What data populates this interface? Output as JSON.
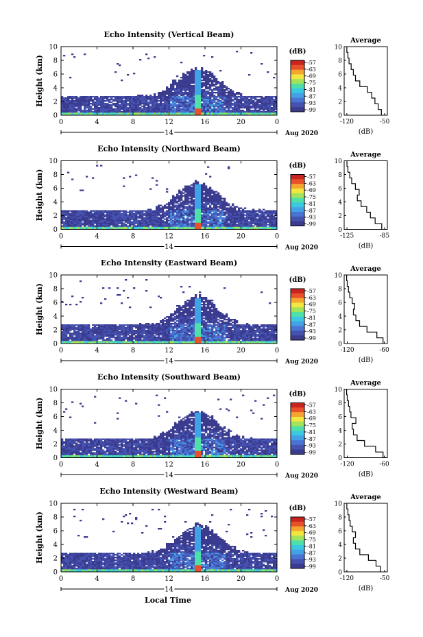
{
  "figure": {
    "date_label": "Aug 2020",
    "x_axis_title": "Local Time",
    "day_label": "14",
    "height_label": "Height (km)",
    "colorbar_unit": "(dB)",
    "avg_title": "Average",
    "avg_xlabel": "(dB)"
  },
  "colors": {
    "colormap": [
      "#3b3b8f",
      "#4552b0",
      "#4a74d4",
      "#43a1e6",
      "#3cc8e0",
      "#4ee0a8",
      "#a3e35a",
      "#f2e640",
      "#f5a52f",
      "#e8512a",
      "#c9241f"
    ],
    "background_echo": "#3b3b8f"
  },
  "chart_data": [
    {
      "type": "heatmap",
      "title": "Echo Intensity (Vertical Beam)",
      "ylabel": "Height (km)",
      "xlabel": "Local Time",
      "x_ticks": [
        "0",
        "4",
        "8",
        "12",
        "16",
        "20",
        "0"
      ],
      "y_ticks": [
        "0",
        "2",
        "4",
        "6",
        "8",
        "10"
      ],
      "xlim": [
        0,
        24
      ],
      "ylim": [
        0,
        10
      ],
      "colorbar": {
        "unit": "(dB)",
        "ticks": [
          "-57",
          "-63",
          "-69",
          "-75",
          "-81",
          "-87",
          "-93",
          "-99"
        ]
      },
      "average_profile": {
        "title": "Average",
        "xlabel": "(dB)",
        "xticks": [
          "-120",
          "-50"
        ],
        "xlim": [
          -125,
          -45
        ],
        "ylim": [
          0,
          10
        ],
        "values": [
          -56,
          -62,
          -68,
          -74,
          -82,
          -96,
          -104,
          -108,
          -112,
          -116,
          -118,
          -120
        ]
      }
    },
    {
      "type": "heatmap",
      "title": "Echo Intensity (Northward Beam)",
      "ylabel": "Height (km)",
      "xlabel": "Local Time",
      "x_ticks": [
        "0",
        "4",
        "8",
        "12",
        "16",
        "20",
        "0"
      ],
      "y_ticks": [
        "0",
        "2",
        "4",
        "6",
        "8",
        "10"
      ],
      "xlim": [
        0,
        24
      ],
      "ylim": [
        0,
        10
      ],
      "colorbar": {
        "unit": "(dB)",
        "ticks": [
          "-57",
          "-63",
          "-69",
          "-75",
          "-81",
          "-87",
          "-93",
          "-99"
        ]
      },
      "average_profile": {
        "title": "Average",
        "xlabel": "(dB)",
        "xticks": [
          "-125",
          "-85"
        ],
        "xlim": [
          -128,
          -82
        ],
        "ylim": [
          0,
          10
        ],
        "values": [
          -88,
          -95,
          -100,
          -104,
          -110,
          -114,
          -112,
          -116,
          -120,
          -122,
          -124,
          -125
        ]
      }
    },
    {
      "type": "heatmap",
      "title": "Echo Intensity (Eastward Beam)",
      "ylabel": "Height (km)",
      "xlabel": "Local Time",
      "x_ticks": [
        "0",
        "4",
        "8",
        "12",
        "16",
        "20",
        "0"
      ],
      "y_ticks": [
        "0",
        "2",
        "4",
        "6",
        "8",
        "10"
      ],
      "xlim": [
        0,
        24
      ],
      "ylim": [
        0,
        10
      ],
      "colorbar": {
        "unit": "(dB)",
        "ticks": [
          "-57",
          "-63",
          "-69",
          "-75",
          "-81",
          "-87",
          "-93",
          "-99"
        ]
      },
      "average_profile": {
        "title": "Average",
        "xlabel": "(dB)",
        "xticks": [
          "-120",
          "-60"
        ],
        "xlim": [
          -125,
          -55
        ],
        "ylim": [
          0,
          10
        ],
        "values": [
          -62,
          -72,
          -88,
          -100,
          -106,
          -110,
          -108,
          -112,
          -116,
          -118,
          -120,
          -121
        ]
      }
    },
    {
      "type": "heatmap",
      "title": "Echo Intensity (Southward Beam)",
      "ylabel": "Height (km)",
      "xlabel": "Local Time",
      "x_ticks": [
        "0",
        "4",
        "8",
        "12",
        "16",
        "20",
        "0"
      ],
      "y_ticks": [
        "0",
        "2",
        "4",
        "6",
        "8",
        "10"
      ],
      "xlim": [
        0,
        24
      ],
      "ylim": [
        0,
        10
      ],
      "colorbar": {
        "unit": "(dB)",
        "ticks": [
          "-57",
          "-63",
          "-69",
          "-75",
          "-81",
          "-87",
          "-93",
          "-99"
        ]
      },
      "average_profile": {
        "title": "Average",
        "xlabel": "(dB)",
        "xticks": [
          "-120",
          "-60"
        ],
        "xlim": [
          -125,
          -55
        ],
        "ylim": [
          0,
          10
        ],
        "values": [
          -62,
          -74,
          -92,
          -104,
          -110,
          -112,
          -106,
          -114,
          -116,
          -118,
          -120,
          -121
        ]
      }
    },
    {
      "type": "heatmap",
      "title": "Echo Intensity (Westward Beam)",
      "ylabel": "Height (km)",
      "xlabel": "Local Time",
      "x_ticks": [
        "0",
        "4",
        "8",
        "12",
        "16",
        "20",
        "0"
      ],
      "y_ticks": [
        "0",
        "2",
        "4",
        "6",
        "8",
        "10"
      ],
      "xlim": [
        0,
        24
      ],
      "ylim": [
        0,
        10
      ],
      "colorbar": {
        "unit": "(dB)",
        "ticks": [
          "-57",
          "-63",
          "-69",
          "-75",
          "-81",
          "-87",
          "-93",
          "-99"
        ]
      },
      "average_profile": {
        "title": "Average",
        "xlabel": "(dB)",
        "xticks": [
          "-120",
          "-50"
        ],
        "xlim": [
          -125,
          -45
        ],
        "ylim": [
          0,
          10
        ],
        "values": [
          -58,
          -66,
          -80,
          -96,
          -104,
          -108,
          -104,
          -110,
          -114,
          -116,
          -118,
          -120
        ]
      }
    }
  ]
}
